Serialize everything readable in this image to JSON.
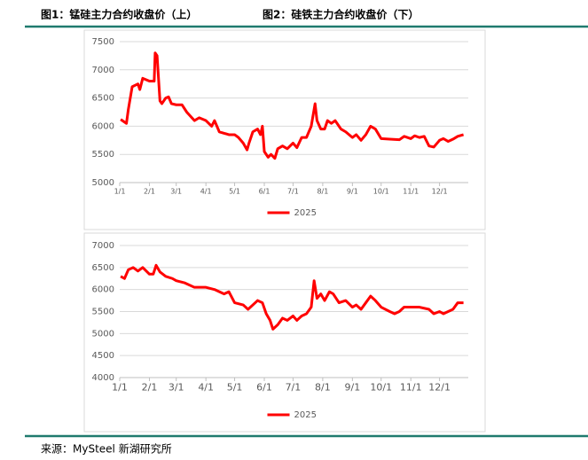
{
  "header": {
    "left": "图1：锰硅主力合约收盘价（上）",
    "right": "图2：硅铁主力合约收盘价（下）"
  },
  "source": "来源：MySteel 新湖研究所",
  "chart_data": [
    {
      "type": "line",
      "x": [
        "1/2",
        "1/8",
        "1/10",
        "1/14",
        "1/20",
        "1/22",
        "1/25",
        "2/1",
        "2/6",
        "2/7",
        "2/9",
        "2/12",
        "2/14",
        "2/18",
        "2/21",
        "2/24",
        "3/1",
        "3/7",
        "3/12",
        "3/20",
        "3/25",
        "4/1",
        "4/7",
        "4/10",
        "4/15",
        "4/25",
        "5/1",
        "5/5",
        "5/10",
        "5/14",
        "5/16",
        "5/20",
        "5/25",
        "5/28",
        "5/30",
        "6/1",
        "6/5",
        "6/8",
        "6/12",
        "6/15",
        "6/20",
        "6/25",
        "7/1",
        "7/5",
        "7/10",
        "7/15",
        "7/20",
        "7/24",
        "7/26",
        "7/30",
        "8/3",
        "8/6",
        "8/10",
        "8/14",
        "8/20",
        "8/25",
        "9/1",
        "9/5",
        "9/10",
        "9/15",
        "9/20",
        "9/25",
        "10/1",
        "10/10",
        "10/20",
        "10/25",
        "11/1",
        "11/5",
        "11/10",
        "11/15",
        "11/20",
        "11/25",
        "12/1",
        "12/5",
        "12/10",
        "12/15",
        "12/20",
        "12/26"
      ],
      "series": [
        {
          "name": "2025",
          "color": "#ff0000",
          "values": [
            6120,
            6050,
            6300,
            6700,
            6750,
            6650,
            6850,
            6800,
            6800,
            7300,
            7250,
            6450,
            6400,
            6500,
            6520,
            6400,
            6380,
            6380,
            6250,
            6100,
            6150,
            6100,
            6000,
            6100,
            5900,
            5850,
            5850,
            5800,
            5700,
            5580,
            5700,
            5900,
            5950,
            5850,
            6000,
            5550,
            5450,
            5500,
            5430,
            5600,
            5650,
            5600,
            5700,
            5620,
            5800,
            5800,
            6000,
            6400,
            6100,
            5950,
            5950,
            6100,
            6050,
            6100,
            5950,
            5900,
            5800,
            5850,
            5750,
            5850,
            6000,
            5950,
            5780,
            5770,
            5760,
            5820,
            5780,
            5830,
            5800,
            5820,
            5650,
            5630,
            5750,
            5780,
            5730,
            5770,
            5820,
            5850
          ]
        }
      ],
      "xlim": [
        "1/1",
        "12/31"
      ],
      "xticks": [
        "1/1",
        "2/1",
        "3/1",
        "4/1",
        "5/1",
        "6/1",
        "7/1",
        "8/1",
        "9/1",
        "10/1",
        "11/1",
        "12/1"
      ],
      "ylim": [
        5000,
        7500
      ],
      "yticks": [
        5000,
        5500,
        6000,
        6500,
        7000,
        7500
      ],
      "grid": true,
      "legend": "bottom"
    },
    {
      "type": "line",
      "x": [
        "1/2",
        "1/6",
        "1/10",
        "1/15",
        "1/20",
        "1/25",
        "2/1",
        "2/5",
        "2/8",
        "2/12",
        "2/18",
        "2/25",
        "3/1",
        "3/10",
        "3/20",
        "4/1",
        "4/10",
        "4/20",
        "4/25",
        "5/1",
        "5/10",
        "5/15",
        "5/20",
        "5/25",
        "5/30",
        "6/3",
        "6/7",
        "6/10",
        "6/15",
        "6/20",
        "6/25",
        "7/1",
        "7/5",
        "7/10",
        "7/15",
        "7/20",
        "7/23",
        "7/26",
        "7/30",
        "8/3",
        "8/8",
        "8/12",
        "8/18",
        "8/25",
        "9/1",
        "9/5",
        "9/10",
        "9/15",
        "9/20",
        "9/25",
        "10/1",
        "10/10",
        "10/15",
        "10/20",
        "10/25",
        "11/1",
        "11/10",
        "11/20",
        "11/25",
        "12/1",
        "12/5",
        "12/10",
        "12/15",
        "12/20",
        "12/26"
      ],
      "series": [
        {
          "name": "2025",
          "color": "#ff0000",
          "values": [
            6300,
            6250,
            6450,
            6500,
            6420,
            6500,
            6350,
            6350,
            6550,
            6400,
            6300,
            6250,
            6200,
            6150,
            6050,
            6050,
            6000,
            5900,
            5950,
            5700,
            5650,
            5550,
            5650,
            5750,
            5700,
            5450,
            5300,
            5100,
            5200,
            5350,
            5300,
            5400,
            5300,
            5400,
            5450,
            5600,
            6200,
            5800,
            5900,
            5750,
            5950,
            5900,
            5700,
            5750,
            5600,
            5650,
            5550,
            5700,
            5850,
            5750,
            5600,
            5500,
            5450,
            5500,
            5600,
            5600,
            5600,
            5550,
            5450,
            5500,
            5450,
            5500,
            5550,
            5700,
            5700
          ]
        }
      ],
      "xlim": [
        "1/1",
        "12/31"
      ],
      "xticks": [
        "1/1",
        "2/1",
        "3/1",
        "4/1",
        "5/1",
        "6/1",
        "7/1",
        "8/1",
        "9/1",
        "10/1",
        "11/1",
        "12/1"
      ],
      "ylim": [
        4000,
        7000
      ],
      "yticks": [
        4000,
        4500,
        5000,
        5500,
        6000,
        6500,
        7000
      ],
      "grid": true,
      "legend": "bottom"
    }
  ]
}
